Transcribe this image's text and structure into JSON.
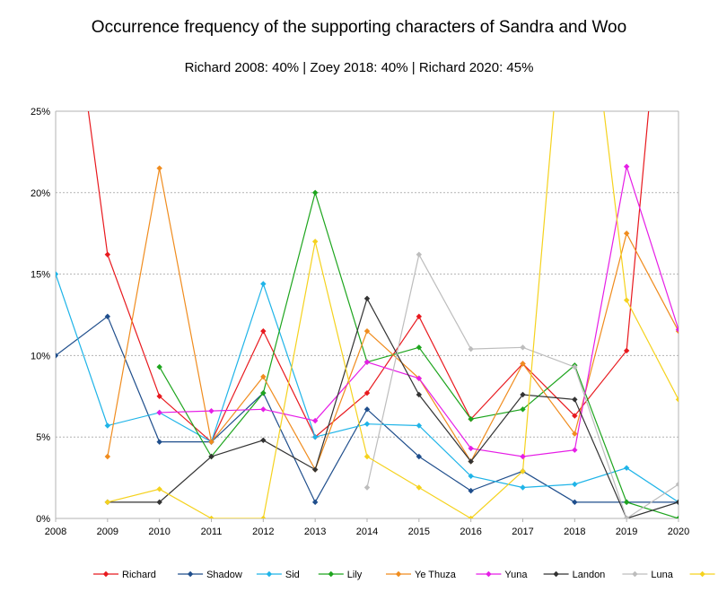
{
  "chart_data": {
    "type": "line",
    "title": "Occurrence frequency of the supporting characters of Sandra and Woo",
    "subtitle": "Richard 2008: 40%  |  Zoey 2018: 40%  |  Richard 2020: 45%",
    "xlabel": "",
    "ylabel": "",
    "x": [
      2008,
      2009,
      2010,
      2011,
      2012,
      2013,
      2014,
      2015,
      2016,
      2017,
      2018,
      2019,
      2020
    ],
    "x_tick_labels": [
      "2008",
      "2009",
      "2010",
      "2011",
      "2012",
      "2013",
      "2014",
      "2015",
      "2016",
      "2017",
      "2018",
      "2019",
      "2020"
    ],
    "y_tick_labels": [
      "0%",
      "5%",
      "10%",
      "15%",
      "20%",
      "25%"
    ],
    "y_ticks": [
      0,
      5,
      10,
      15,
      20,
      25
    ],
    "ylim": [
      0,
      25
    ],
    "grid": true,
    "legend_position": "bottom",
    "series": [
      {
        "name": "Richard",
        "color": "#e8191e",
        "values": [
          40,
          16.2,
          7.5,
          4.7,
          11.5,
          5.0,
          7.7,
          12.4,
          6.1,
          9.5,
          6.3,
          10.3,
          45
        ]
      },
      {
        "name": "Shadow",
        "color": "#1f4e8c",
        "values": [
          10.0,
          12.4,
          4.7,
          4.7,
          7.7,
          1.0,
          6.7,
          3.8,
          1.7,
          2.9,
          1.0,
          1.0,
          1.0
        ]
      },
      {
        "name": "Sid",
        "color": "#1fb4e8",
        "values": [
          15.0,
          5.7,
          6.5,
          4.7,
          14.4,
          5.0,
          5.8,
          5.7,
          2.6,
          1.9,
          2.1,
          3.1,
          1.0
        ]
      },
      {
        "name": "Lily",
        "color": "#1ea51e",
        "values": [
          null,
          null,
          9.3,
          3.8,
          7.7,
          20.0,
          9.6,
          10.5,
          6.1,
          6.7,
          9.4,
          1.0,
          0
        ]
      },
      {
        "name": "Ye Thuza",
        "color": "#f08c1e",
        "values": [
          null,
          3.8,
          21.5,
          4.7,
          8.7,
          3.0,
          11.5,
          8.6,
          3.5,
          9.5,
          5.2,
          17.5,
          11.5
        ]
      },
      {
        "name": "Yuna",
        "color": "#e61ee6",
        "values": [
          null,
          null,
          6.5,
          6.6,
          6.7,
          6.0,
          9.6,
          8.6,
          4.3,
          3.8,
          4.2,
          21.6,
          11.6
        ]
      },
      {
        "name": "Landon",
        "color": "#333333",
        "values": [
          null,
          1.0,
          1.0,
          3.8,
          4.8,
          3.0,
          13.5,
          7.6,
          3.5,
          7.6,
          7.3,
          0,
          1.0
        ]
      },
      {
        "name": "Luna",
        "color": "#bdbdbd",
        "values": [
          null,
          null,
          null,
          null,
          null,
          null,
          1.9,
          16.2,
          10.4,
          10.5,
          9.3,
          0,
          2.1
        ]
      },
      {
        "name": "Zoey",
        "color": "#f5d21e",
        "values": [
          null,
          1.0,
          1.8,
          0,
          0,
          17.0,
          3.8,
          1.9,
          0,
          2.9,
          40,
          13.4,
          7.3
        ]
      }
    ]
  }
}
